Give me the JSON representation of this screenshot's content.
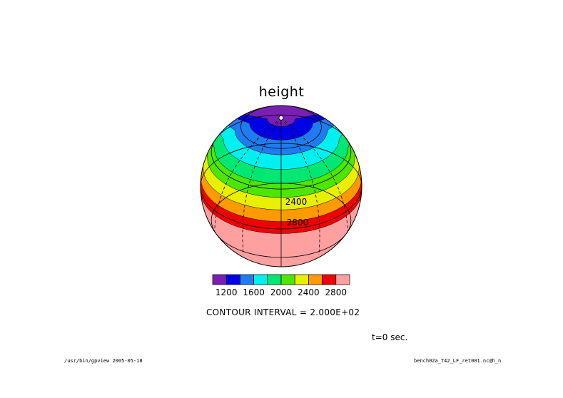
{
  "chart_data": {
    "type": "heatmap",
    "title": "height",
    "projection": "orthographic",
    "levels": [
      1200,
      1400,
      1600,
      1800,
      2000,
      2200,
      2400,
      2600,
      2800
    ],
    "bands": [
      {
        "min": 1000,
        "max": 1200,
        "color": "#7a1fb3"
      },
      {
        "min": 1200,
        "max": 1400,
        "color": "#0000e6"
      },
      {
        "min": 1400,
        "max": 1600,
        "color": "#1e7cf0"
      },
      {
        "min": 1600,
        "max": 1800,
        "color": "#00f0f0"
      },
      {
        "min": 1800,
        "max": 2000,
        "color": "#00e873"
      },
      {
        "min": 2000,
        "max": 2200,
        "color": "#4de600"
      },
      {
        "min": 2200,
        "max": 2400,
        "color": "#e8f000"
      },
      {
        "min": 2400,
        "max": 2600,
        "color": "#ff9a00"
      },
      {
        "min": 2600,
        "max": 2800,
        "color": "#f00000"
      },
      {
        "min": 2800,
        "max": 3000,
        "color": "#ffa0a0"
      }
    ],
    "colorbar_ticks": [
      "1200",
      "1600",
      "2000",
      "2400",
      "2800"
    ],
    "contour_labels": [
      "2400",
      "2800"
    ],
    "contour_interval": "CONTOUR INTERVAL = 2.000E+02",
    "time_label": "t=0 sec."
  },
  "footer": {
    "left": "/usr/bin/gpview  2005-05-18",
    "right": "bench02a_T42_LF_ret001.nc@h_n"
  }
}
